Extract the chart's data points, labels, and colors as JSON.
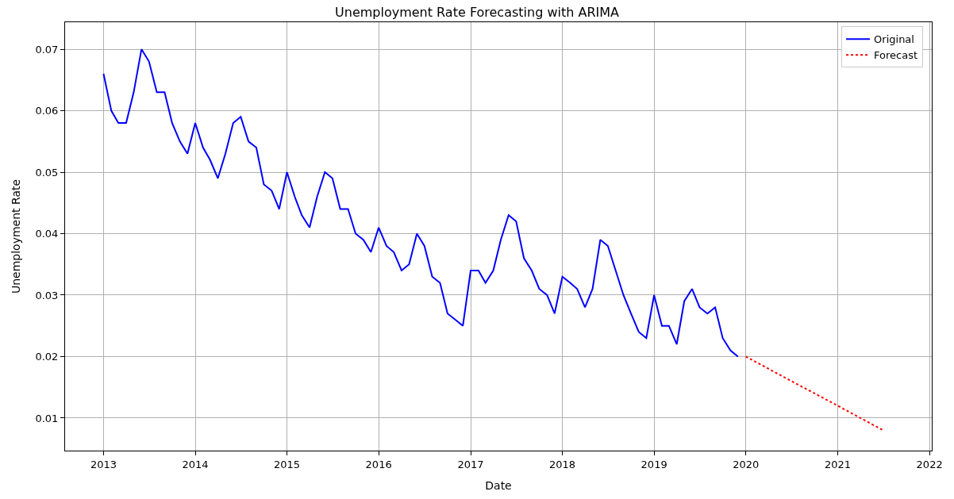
{
  "chart_data": {
    "type": "line",
    "title": "Unemployment Rate Forecasting with ARIMA",
    "xlabel": "Date",
    "ylabel": "Unemployment Rate",
    "series": [
      {
        "name": "Original",
        "color": "#0000ff",
        "line_style": "solid",
        "x": [
          "2013-01",
          "2013-02",
          "2013-03",
          "2013-04",
          "2013-05",
          "2013-06",
          "2013-07",
          "2013-08",
          "2013-09",
          "2013-10",
          "2013-11",
          "2013-12",
          "2014-01",
          "2014-02",
          "2014-03",
          "2014-04",
          "2014-05",
          "2014-06",
          "2014-07",
          "2014-08",
          "2014-09",
          "2014-10",
          "2014-11",
          "2014-12",
          "2015-01",
          "2015-02",
          "2015-03",
          "2015-04",
          "2015-05",
          "2015-06",
          "2015-07",
          "2015-08",
          "2015-09",
          "2015-10",
          "2015-11",
          "2015-12",
          "2016-01",
          "2016-02",
          "2016-03",
          "2016-04",
          "2016-05",
          "2016-06",
          "2016-07",
          "2016-08",
          "2016-09",
          "2016-10",
          "2016-11",
          "2016-12",
          "2017-01",
          "2017-02",
          "2017-03",
          "2017-04",
          "2017-05",
          "2017-06",
          "2017-07",
          "2017-08",
          "2017-09",
          "2017-10",
          "2017-11",
          "2017-12",
          "2018-01",
          "2018-02",
          "2018-03",
          "2018-04",
          "2018-05",
          "2018-06",
          "2018-07",
          "2018-08",
          "2018-09",
          "2018-10",
          "2018-11",
          "2018-12",
          "2019-01",
          "2019-02",
          "2019-03",
          "2019-04",
          "2019-05",
          "2019-06",
          "2019-07",
          "2019-08",
          "2019-09",
          "2019-10",
          "2019-11",
          "2019-12"
        ],
        "values": [
          0.066,
          0.06,
          0.058,
          0.058,
          0.063,
          0.07,
          0.068,
          0.063,
          0.063,
          0.058,
          0.055,
          0.053,
          0.058,
          0.054,
          0.052,
          0.049,
          0.053,
          0.058,
          0.059,
          0.055,
          0.054,
          0.048,
          0.047,
          0.044,
          0.05,
          0.046,
          0.043,
          0.041,
          0.046,
          0.05,
          0.049,
          0.044,
          0.044,
          0.04,
          0.039,
          0.037,
          0.041,
          0.038,
          0.037,
          0.034,
          0.035,
          0.04,
          0.038,
          0.033,
          0.032,
          0.027,
          0.026,
          0.025,
          0.034,
          0.034,
          0.032,
          0.034,
          0.039,
          0.043,
          0.042,
          0.036,
          0.034,
          0.031,
          0.03,
          0.027,
          0.033,
          0.032,
          0.031,
          0.028,
          0.031,
          0.039,
          0.038,
          0.034,
          0.03,
          0.027,
          0.024,
          0.023,
          0.03,
          0.025,
          0.025,
          0.022,
          0.029,
          0.031,
          0.028,
          0.027,
          0.028,
          0.023,
          0.021,
          0.02
        ]
      },
      {
        "name": "Forecast",
        "color": "#ff0000",
        "line_style": "dotted",
        "x": [
          "2020-01",
          "2020-04",
          "2020-07",
          "2020-10",
          "2021-01",
          "2021-04",
          "2021-07"
        ],
        "values": [
          0.02,
          0.018,
          0.016,
          0.014,
          0.012,
          0.01,
          0.008
        ]
      }
    ],
    "xlim": [
      "2012-08-01",
      "2022-01-10"
    ],
    "xticks": [
      "2013",
      "2014",
      "2015",
      "2016",
      "2017",
      "2018",
      "2019",
      "2020",
      "2021",
      "2022"
    ],
    "ylim": [
      0.0047,
      0.0744
    ],
    "yticks": [
      0.01,
      0.02,
      0.03,
      0.04,
      0.05,
      0.06,
      0.07
    ],
    "grid": true,
    "legend": "top right",
    "marker": "none"
  }
}
